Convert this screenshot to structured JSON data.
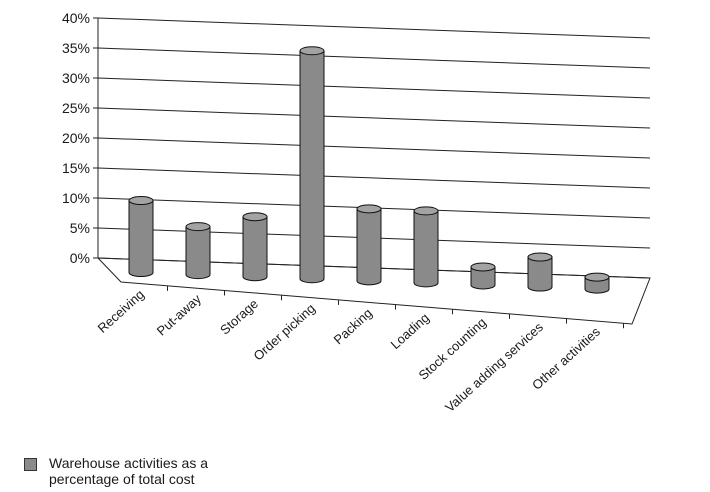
{
  "chart_data": {
    "type": "bar",
    "categories": [
      "Receiving",
      "Put-away",
      "Storage",
      "Order picking",
      "Packing",
      "Loading",
      "Stock counting",
      "Value adding services",
      "Other activities"
    ],
    "series": [
      {
        "name": "Warehouse activities as a percentage of total cost",
        "values": [
          12,
          8,
          10,
          38,
          12,
          12,
          3,
          5,
          2
        ]
      }
    ],
    "y_ticks": [
      "0%",
      "5%",
      "10%",
      "15%",
      "20%",
      "25%",
      "30%",
      "35%",
      "40%"
    ],
    "ylim": [
      0,
      40
    ],
    "grid": true,
    "legend": "bottom-left",
    "style": "3d-cylinder",
    "colors": {
      "bar": "#8a8a8a",
      "bar_shade": "#6f6f6f",
      "bar_top": "#a3a3a3",
      "grid": "#222222"
    }
  }
}
